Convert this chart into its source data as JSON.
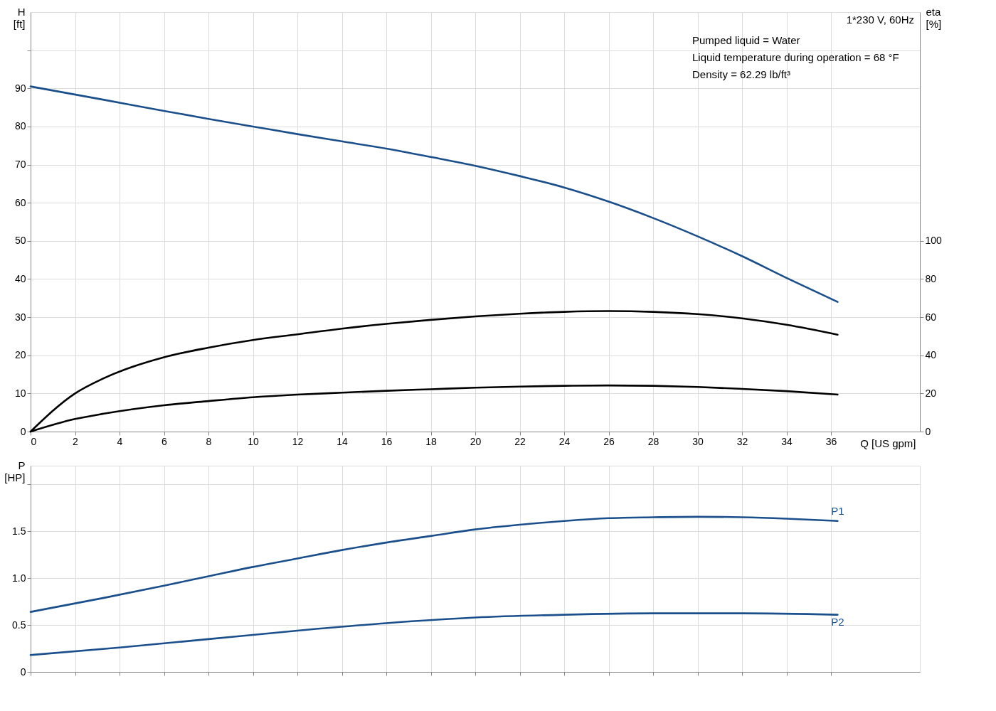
{
  "chart_data": [
    {
      "type": "line",
      "xlabel": "Q [US gpm]",
      "ylabel": "H [ft]",
      "y2label": "eta [%]",
      "xlim": [
        0,
        40
      ],
      "xticks": [
        0,
        2,
        4,
        6,
        8,
        10,
        12,
        14,
        16,
        18,
        20,
        22,
        24,
        26,
        28,
        30,
        32,
        34,
        36
      ],
      "ylim": [
        0,
        110
      ],
      "yticks": [
        0,
        10,
        20,
        30,
        40,
        50,
        60,
        70,
        80,
        90,
        {
          "value": 100,
          "label": null
        }
      ],
      "y2lim": [
        0,
        220
      ],
      "y2ticks": [
        0,
        20,
        40,
        60,
        80,
        100
      ],
      "grid": true,
      "marker": "none",
      "line_style": "solid",
      "annotations": [
        "1*230 V, 60Hz",
        "Pumped liquid = Water",
        "Liquid temperature during operation = 68 °F",
        "Density = 62.29 lb/ft³"
      ],
      "series": [
        {
          "color": "#1a4f8c",
          "x": [
            0,
            3.3,
            6,
            8,
            10,
            12,
            14,
            16,
            18,
            20,
            22,
            24,
            26,
            28,
            30,
            32,
            34,
            36.3
          ],
          "values": [
            90.5,
            87,
            84.1,
            82,
            80,
            78,
            76.1,
            74.2,
            72,
            69.7,
            67,
            64,
            60.3,
            56,
            51.2,
            46,
            40.3,
            34
          ]
        },
        {
          "color": "#000000",
          "axis": "y2",
          "x": [
            0,
            2,
            3.3,
            6,
            8,
            10,
            12,
            14,
            16,
            18,
            20,
            22,
            24,
            26,
            28,
            30,
            32,
            34,
            36.3
          ],
          "values": [
            0,
            20,
            28,
            39,
            44,
            48,
            51,
            54,
            56.5,
            58.6,
            60.4,
            61.8,
            62.8,
            63.2,
            62.8,
            61.6,
            59.4,
            56,
            50.8
          ]
        },
        {
          "color": "#000000",
          "axis": "y2",
          "x": [
            0,
            2,
            3.3,
            6,
            8,
            10,
            12,
            14,
            16,
            18,
            20,
            22,
            24,
            26,
            28,
            30,
            32,
            34,
            36.3
          ],
          "values": [
            0,
            6.6,
            9.4,
            13.8,
            16,
            18,
            19.4,
            20.4,
            21.4,
            22.2,
            23,
            23.6,
            24,
            24.2,
            24,
            23.4,
            22.4,
            21.2,
            19.4
          ]
        }
      ]
    },
    {
      "type": "line",
      "ylabel": "P [HP]",
      "xlim": [
        0,
        40
      ],
      "xticks": [
        0,
        2,
        4,
        6,
        8,
        10,
        12,
        14,
        16,
        18,
        20,
        22,
        24,
        26,
        28,
        30,
        32,
        34,
        36
      ],
      "ylim": [
        0,
        2.2
      ],
      "yticks": [
        0,
        0.5,
        {
          "value": 1,
          "label": "1.0"
        },
        1.5,
        {
          "value": 2,
          "label": null
        }
      ],
      "tick_labels": "y",
      "grid": true,
      "marker": "none",
      "line_style": "solid",
      "series": [
        {
          "name": "P1",
          "color": "#1a4f8c",
          "x": [
            0,
            3.3,
            6,
            8,
            10,
            12,
            14,
            16,
            18,
            20,
            22,
            24,
            26,
            28,
            30,
            32,
            34,
            36.3
          ],
          "values": [
            0.64,
            0.79,
            0.92,
            1.02,
            1.12,
            1.21,
            1.3,
            1.38,
            1.45,
            1.52,
            1.57,
            1.61,
            1.64,
            1.65,
            1.655,
            1.65,
            1.635,
            1.61
          ]
        },
        {
          "name": "P2",
          "color": "#1a4f8c",
          "x": [
            0,
            4,
            8,
            12,
            16,
            20,
            24,
            28,
            32,
            36.3
          ],
          "values": [
            0.18,
            0.26,
            0.35,
            0.44,
            0.52,
            0.58,
            0.61,
            0.625,
            0.625,
            0.61
          ]
        }
      ]
    }
  ]
}
